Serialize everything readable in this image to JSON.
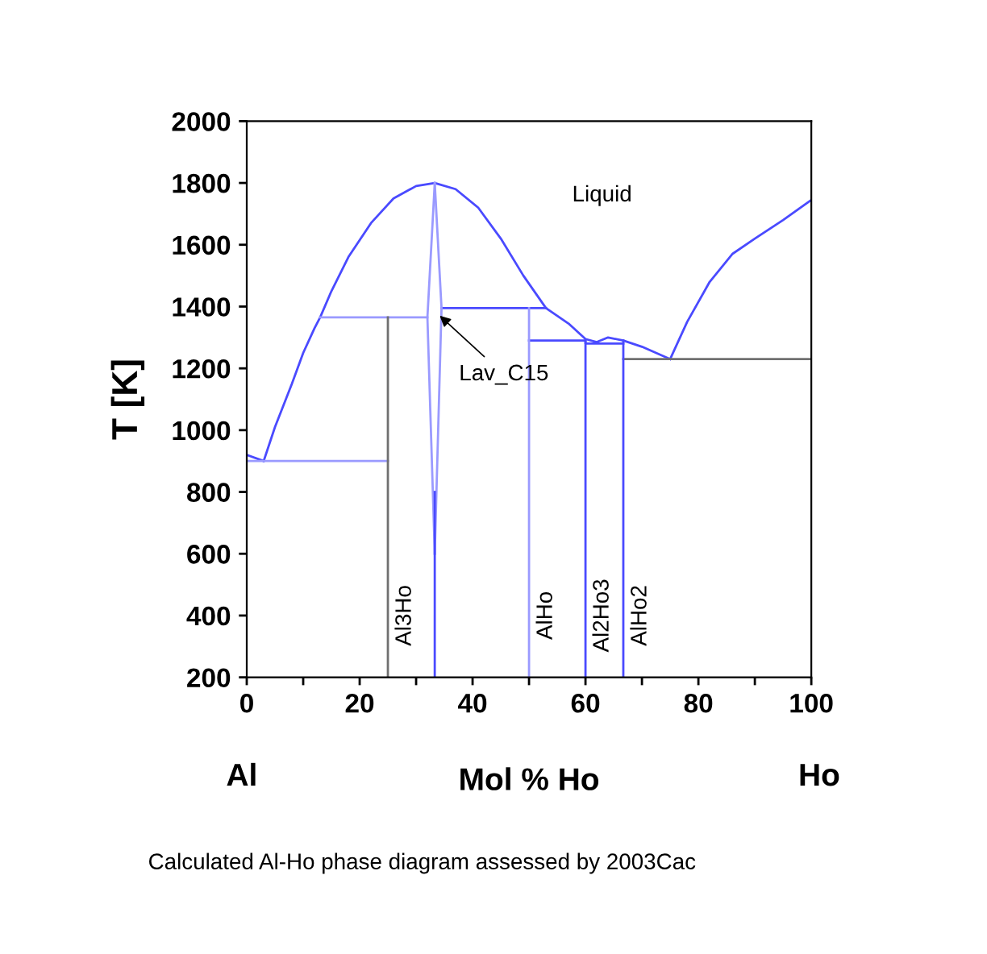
{
  "chart_data": {
    "type": "line",
    "xlabel": "Mol % Ho",
    "ylabel": "T [K]",
    "xlim": [
      0,
      100
    ],
    "ylim": [
      200,
      2000
    ],
    "xticks": [
      0,
      {
        "value": 10,
        "label": null
      },
      20,
      {
        "value": 30,
        "label": null
      },
      40,
      {
        "value": 50,
        "label": null
      },
      60,
      {
        "value": 70,
        "label": null
      },
      80,
      {
        "value": 90,
        "label": null
      },
      100
    ],
    "yticks": [
      200,
      400,
      600,
      800,
      1000,
      1200,
      1400,
      1600,
      1800,
      2000
    ],
    "grid": false,
    "legend": false,
    "marker": "none",
    "line_style": "solid",
    "series": [
      {
        "color": "#4a4aff",
        "x": [
          0,
          3
        ],
        "values": [
          920,
          900
        ]
      },
      {
        "color": "#4a4aff",
        "x": [
          3,
          5,
          8,
          10,
          12,
          13,
          15,
          18,
          22,
          26,
          30,
          33.3,
          37,
          41,
          45,
          49,
          53,
          57,
          60,
          62,
          64,
          66.7,
          70,
          75
        ],
        "values": [
          900,
          1010,
          1150,
          1250,
          1330,
          1365,
          1450,
          1560,
          1670,
          1750,
          1790,
          1800,
          1780,
          1720,
          1620,
          1500,
          1395,
          1345,
          1295,
          1285,
          1300,
          1290,
          1270,
          1230
        ]
      },
      {
        "color": "#4a4aff",
        "x": [
          75,
          78,
          82,
          86,
          90,
          95,
          100
        ],
        "values": [
          1230,
          1350,
          1480,
          1570,
          1620,
          1680,
          1745
        ]
      },
      {
        "color": "#9a9aff",
        "x": [
          0,
          25
        ],
        "values": [
          900,
          900
        ]
      },
      {
        "color": "#9a9aff",
        "x": [
          13,
          32
        ],
        "values": [
          1365,
          1365
        ]
      },
      {
        "color": "#4a4aff",
        "x": [
          34.5,
          53
        ],
        "values": [
          1395,
          1395
        ]
      },
      {
        "color": "#4a4aff",
        "x": [
          50,
          60,
          60,
          66.7
        ],
        "values": [
          1290,
          1290,
          1280,
          1280
        ]
      },
      {
        "color": "#707070",
        "x": [
          66.7,
          100
        ],
        "values": [
          1230,
          1230
        ]
      },
      {
        "color": "#707070",
        "x": [
          25,
          25
        ],
        "values": [
          200,
          1365
        ]
      },
      {
        "color": "#9a9aff",
        "x": [
          33.3,
          32,
          33.3
        ],
        "values": [
          1800,
          1365,
          600
        ]
      },
      {
        "color": "#9a9aff",
        "x": [
          33.3,
          34.5,
          33.3
        ],
        "values": [
          1800,
          1395,
          600
        ]
      },
      {
        "color": "#4a4aff",
        "x": [
          33.3,
          33.3
        ],
        "values": [
          200,
          800
        ]
      },
      {
        "color": "#9a9aff",
        "x": [
          50,
          50
        ],
        "values": [
          200,
          1395
        ]
      },
      {
        "color": "#4a4aff",
        "x": [
          60,
          60
        ],
        "values": [
          200,
          1290
        ]
      },
      {
        "color": "#4a4aff",
        "x": [
          66.7,
          66.7
        ],
        "values": [
          200,
          1290
        ]
      }
    ],
    "annotations": [
      "Liquid",
      {
        "text": "Lav_C15",
        "x": 33.6,
        "y": 1380
      },
      {
        "text": "Al3Ho",
        "x": 25,
        "y": 400
      },
      {
        "text": "AlHo",
        "x": 50,
        "y": 400
      },
      {
        "text": "Al2Ho3",
        "x": 60,
        "y": 400
      },
      {
        "text": "AlHo2",
        "x": 66.7,
        "y": 400
      },
      "Al",
      "Ho",
      "Calculated Al-Ho phase diagram assessed by 2003Cac"
    ]
  }
}
